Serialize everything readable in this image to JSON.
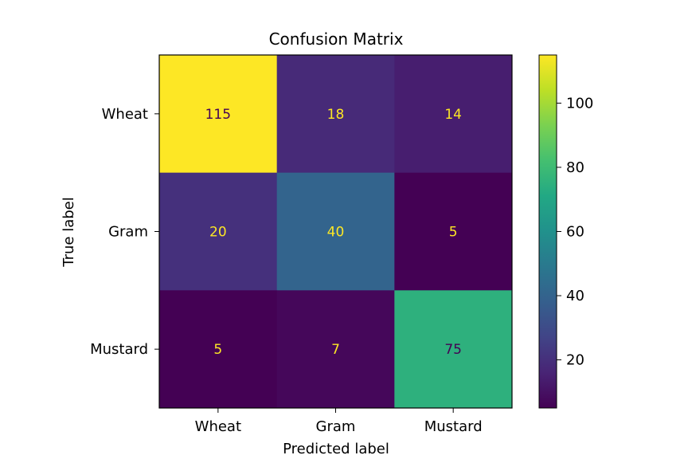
{
  "chart_data": {
    "type": "heatmap",
    "title": "Confusion Matrix",
    "xlabel": "Predicted label",
    "ylabel": "True label",
    "x_categories": [
      "Wheat",
      "Gram",
      "Mustard"
    ],
    "y_categories": [
      "Wheat",
      "Gram",
      "Mustard"
    ],
    "values": [
      [
        115,
        18,
        14
      ],
      [
        20,
        40,
        5
      ],
      [
        5,
        7,
        75
      ]
    ],
    "colormap": "viridis",
    "colorbar": {
      "range": [
        5,
        115
      ],
      "ticks": [
        20,
        40,
        60,
        80,
        100
      ],
      "tick_labels": [
        "20",
        "40",
        "60",
        "80",
        "100"
      ]
    },
    "grid": false,
    "colors": {
      "label_on_dark": "#fde725",
      "label_on_light": "#440154"
    }
  }
}
